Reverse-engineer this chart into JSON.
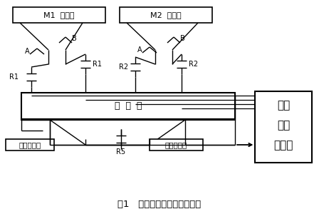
{
  "title": "图1   配料称量系统结构原理图",
  "ctrl_text": [
    "电子",
    "配料",
    "控制器"
  ],
  "m1": "M1  储料箱",
  "m2": "M2  储料箱",
  "wbox": "称  量  箱",
  "sens1": "称重传感器",
  "sens2": "称重传感器",
  "r1": "R1",
  "r1b": "R1",
  "r2": "R2",
  "r2b": "R2",
  "r5": "R5",
  "a1": "A",
  "b1": "B",
  "a2": "A",
  "b2": "B",
  "figsize": [
    4.48,
    3.0
  ],
  "dpi": 100
}
